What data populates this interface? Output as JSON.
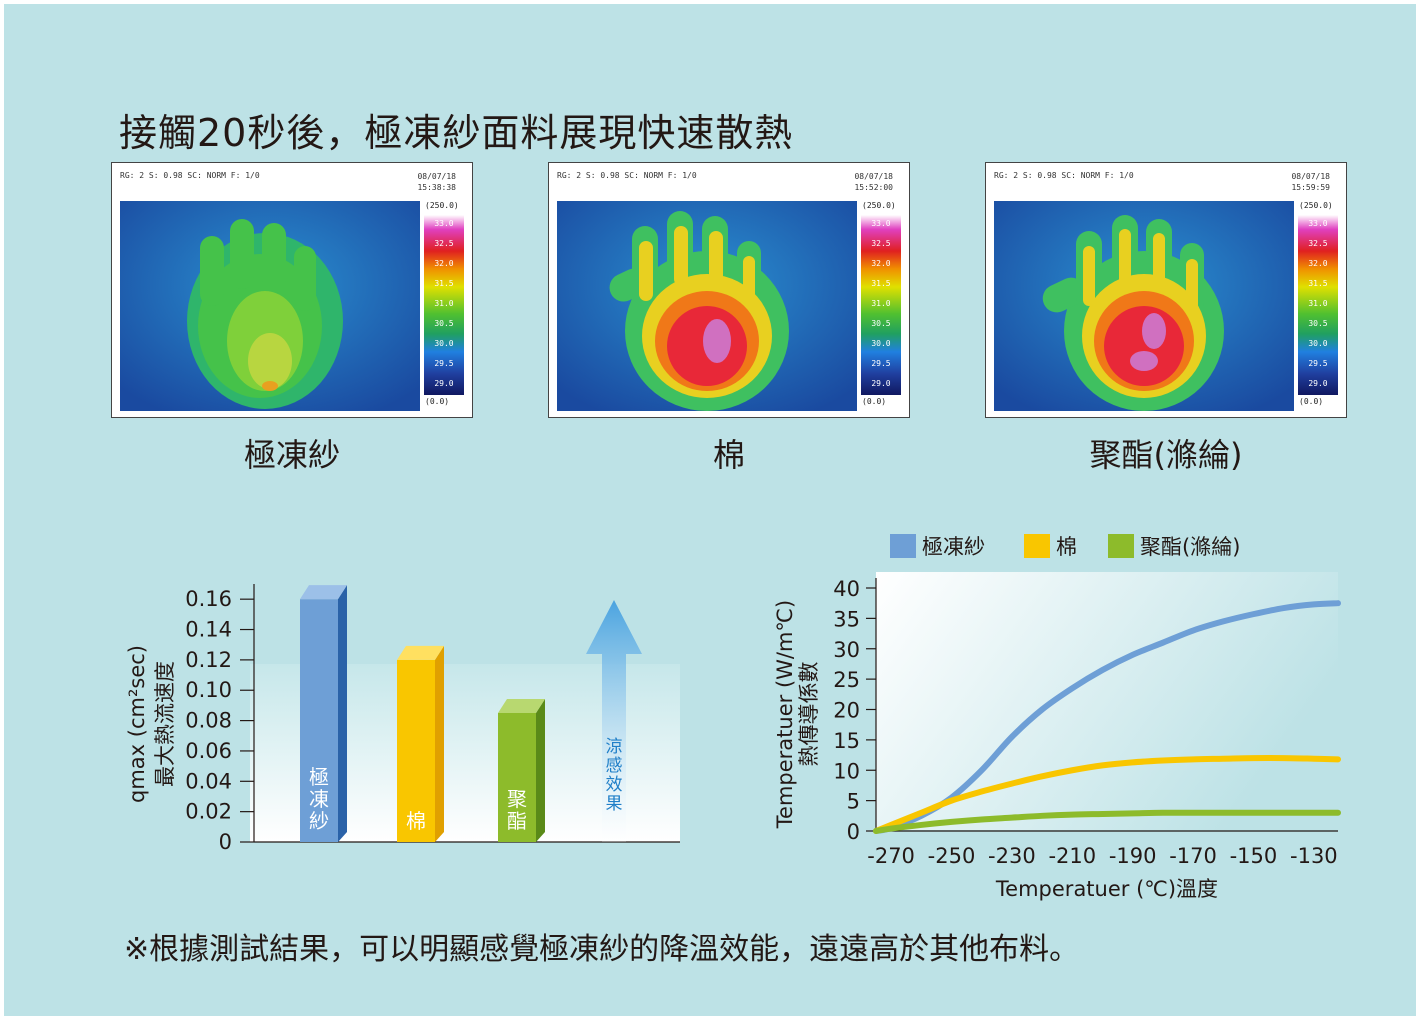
{
  "title": "接觸20秒後，極凍紗面料展現快速散熱",
  "thermal_images": [
    {
      "header": "RG: 2  S: 0.98  SC: NORM  F: 1/0",
      "date": "08/07/18",
      "time": "15:38:38",
      "scale_max": "(250.0)",
      "scale_min": "(0.0)",
      "caption": "極凍紗",
      "scale_ticks": [
        "33.0",
        "32.5",
        "32.0",
        "31.5",
        "31.0",
        "30.5",
        "30.0",
        "29.5",
        "29.0"
      ]
    },
    {
      "header": "RG: 2  S: 0.98  SC: NORM  F: 1/0",
      "date": "08/07/18",
      "time": "15:52:00",
      "scale_max": "(250.0)",
      "scale_min": "(0.0)",
      "caption": "棉",
      "scale_ticks": [
        "33.0",
        "32.5",
        "32.0",
        "31.5",
        "31.0",
        "30.5",
        "30.0",
        "29.5",
        "29.0"
      ]
    },
    {
      "header": "RG: 2  S: 0.98  SC: NORM  F: 1/0",
      "date": "08/07/18",
      "time": "15:59:59",
      "scale_max": "(250.0)",
      "scale_min": "(0.0)",
      "caption": "聚酯(滌綸)",
      "scale_ticks": [
        "33.0",
        "32.5",
        "32.0",
        "31.5",
        "31.0",
        "30.5",
        "30.0",
        "29.5",
        "29.0"
      ]
    }
  ],
  "chart_data": [
    {
      "type": "bar",
      "categories": [
        "極凍紗",
        "棉",
        "聚酯"
      ],
      "bar_labels": [
        "極凍紗",
        "棉",
        "聚酯"
      ],
      "values": [
        0.16,
        0.12,
        0.085
      ],
      "colors": [
        "#6e9fd6",
        "#f9c600",
        "#8dbb2b"
      ],
      "ylabel_line1": "qmax (cm²sec)",
      "ylabel_line2": "最大熱流速度",
      "yticks": [
        "0.16",
        "0.14",
        "0.12",
        "0.10",
        "0.08",
        "0.06",
        "0.04",
        "0.02",
        "0"
      ],
      "ylim": [
        0,
        0.17
      ],
      "arrow_label": "涼感效果"
    },
    {
      "type": "line",
      "x": [
        -275,
        -270,
        -260,
        -250,
        -240,
        -230,
        -220,
        -210,
        -200,
        -190,
        -180,
        -170,
        -160,
        -150,
        -140,
        -130,
        -122
      ],
      "series": [
        {
          "name": "極凍紗",
          "color": "#6e9fd6",
          "values": [
            0,
            0.5,
            2.5,
            5.5,
            10,
            15.5,
            20,
            23.5,
            26.5,
            29,
            31,
            33,
            34.5,
            35.7,
            36.7,
            37.3,
            37.5
          ]
        },
        {
          "name": "棉",
          "color": "#f9c600",
          "values": [
            0,
            1,
            3,
            5,
            6.5,
            7.8,
            9,
            10,
            10.8,
            11.3,
            11.6,
            11.8,
            11.9,
            12,
            12,
            11.9,
            11.8
          ]
        },
        {
          "name": "聚酯(滌綸)",
          "color": "#8dbb2b",
          "values": [
            0,
            0.4,
            1,
            1.5,
            1.9,
            2.2,
            2.5,
            2.7,
            2.8,
            2.9,
            3,
            3,
            3,
            3,
            3,
            3,
            3
          ]
        }
      ],
      "legend": [
        "極凍紗",
        "棉",
        "聚酯(滌綸)"
      ],
      "legend_position": "top",
      "xticks": [
        "-270",
        "-250",
        "-230",
        "-210",
        "-190",
        "-170",
        "-150",
        "-130"
      ],
      "yticks": [
        "40",
        "35",
        "30",
        "25",
        "20",
        "15",
        "10",
        "5",
        "0"
      ],
      "xlim": [
        -275,
        -122
      ],
      "ylim": [
        0,
        40
      ],
      "xlabel": "Temperatuer (℃)溫度",
      "ylabel_line1": "Temperatuer (W/m℃)",
      "ylabel_line2": "熱傳導係數"
    }
  ],
  "footnote": "※根據測試結果，可以明顯感覺極凍紗的降溫效能，遠遠高於其他布料。"
}
